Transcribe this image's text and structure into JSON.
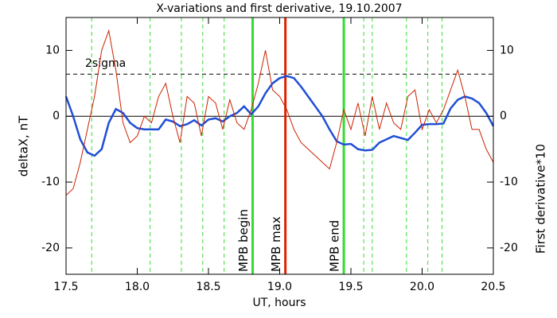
{
  "chart_data": {
    "type": "line",
    "title": "X-variations and first derivative, 19.10.2007",
    "x_label": "UT, hours",
    "y_label": "deltaX, nT",
    "y2_label": "First derivative*10",
    "xlim": [
      17.5,
      20.5
    ],
    "xticks": [
      17.5,
      {
        "value": 18,
        "label": "18.0"
      },
      18.5,
      {
        "value": 19,
        "label": "19.0"
      },
      19.5,
      {
        "value": 20,
        "label": "20.0"
      },
      20.5
    ],
    "ylim": [
      -24,
      15
    ],
    "yticks": [
      -20,
      -10,
      0,
      10
    ],
    "y2lim": [
      -24,
      15
    ],
    "y2ticks": [
      -20,
      -10,
      0,
      10
    ],
    "x": [
      17.5,
      17.55,
      17.6,
      17.65,
      17.7,
      17.75,
      17.8,
      17.85,
      17.9,
      17.95,
      18.0,
      18.05,
      18.1,
      18.15,
      18.2,
      18.25,
      18.3,
      18.35,
      18.4,
      18.45,
      18.5,
      18.55,
      18.6,
      18.65,
      18.7,
      18.75,
      18.8,
      18.85,
      18.9,
      18.95,
      19.0,
      19.05,
      19.1,
      19.15,
      19.2,
      19.25,
      19.3,
      19.35,
      19.4,
      19.45,
      19.5,
      19.55,
      19.6,
      19.65,
      19.7,
      19.75,
      19.8,
      19.85,
      19.9,
      19.95,
      20.0,
      20.05,
      20.1,
      20.15,
      20.2,
      20.25,
      20.3,
      20.35,
      20.4,
      20.45,
      20.5
    ],
    "series": [
      {
        "name": "deltaX, nT",
        "color": "#1f4fd6",
        "values": [
          3,
          0,
          -3.5,
          -5.5,
          -6,
          -5,
          -1,
          1.1,
          0.5,
          -1,
          -1.8,
          -2,
          -2,
          -2,
          -0.5,
          -0.8,
          -1.5,
          -1.2,
          -0.6,
          -1.4,
          -0.5,
          -0.3,
          -0.8,
          0,
          0.5,
          1.5,
          0.3,
          1.5,
          3.5,
          5,
          5.8,
          6.1,
          5.8,
          4.5,
          3,
          1.5,
          0,
          -2,
          -3.8,
          -4.3,
          -4.2,
          -5,
          -5.2,
          -5.1,
          -4,
          -3.5,
          -3,
          -3.3,
          -3.6,
          -2.5,
          -1.3,
          -1.2,
          -1.2,
          -1.1,
          1.2,
          2.5,
          3,
          2.7,
          2,
          0.5,
          -1.5
        ]
      },
      {
        "name": "First derivative*10",
        "color": "#cc2200",
        "axis": "y2",
        "values": [
          -12,
          -11,
          -7,
          -2,
          3,
          10,
          13,
          7,
          -1,
          -4,
          -3,
          0,
          -1,
          3,
          5,
          0,
          -4,
          3,
          2,
          -3,
          3,
          2,
          -2,
          2.5,
          -1,
          -2,
          1,
          5,
          10,
          4,
          3,
          1,
          -2,
          -4,
          -5,
          -6,
          -7,
          -8,
          -4,
          1,
          -2,
          2,
          -3,
          3,
          -2,
          2,
          -1,
          -2,
          3,
          4,
          -2,
          1,
          -1,
          1,
          4,
          7,
          3,
          -2,
          -2,
          -5,
          -7
        ]
      }
    ],
    "threshold": {
      "value": 6.4,
      "label": "2sigma"
    },
    "dashed_lines": {
      "color": "#33dd33",
      "x": [
        17.68,
        18.09,
        18.31,
        18.46,
        18.61,
        19.59,
        19.65,
        19.89,
        20.04,
        20.14
      ]
    },
    "markers": [
      {
        "x": 18.81,
        "label": "MPB begin",
        "color": "#33dd33"
      },
      {
        "x": 19.04,
        "label": "MPB max",
        "color": "#dd2200"
      },
      {
        "x": 19.45,
        "label": "MPB end",
        "color": "#33dd33"
      }
    ]
  }
}
